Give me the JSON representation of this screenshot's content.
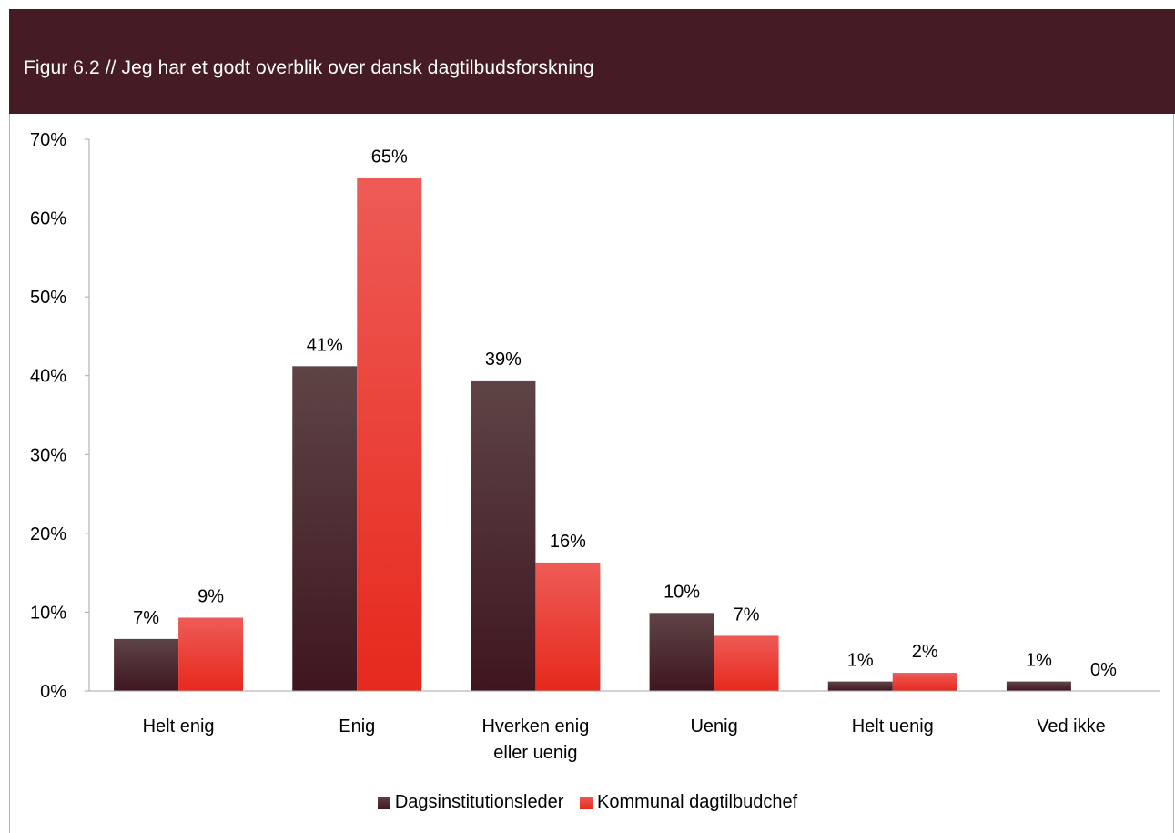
{
  "header": {
    "title": "Figur 6.2 // Jeg har et godt overblik over dansk dagtilbudsforskning"
  },
  "chart_data": {
    "type": "bar",
    "title": "Figur 6.2 // Jeg har et godt overblik over dansk dagtilbudsforskning",
    "categories": [
      [
        "Helt enig"
      ],
      [
        "Enig"
      ],
      [
        "Hverken enig",
        "eller uenig"
      ],
      [
        "Uenig"
      ],
      [
        "Helt uenig"
      ],
      [
        "Ved ikke"
      ]
    ],
    "series": [
      {
        "name": "Dagsinstitutionsleder",
        "values": [
          6.6,
          41.2,
          39.4,
          9.9,
          1.2,
          1.2
        ],
        "labels": [
          "7%",
          "41%",
          "39%",
          "10%",
          "1%",
          "1%"
        ],
        "color_top": "#5e4446",
        "color_bottom": "#3f1620"
      },
      {
        "name": "Kommunal dagtilbudchef",
        "values": [
          9.3,
          65.1,
          16.3,
          7.0,
          2.3,
          0
        ],
        "labels": [
          "9%",
          "65%",
          "16%",
          "7%",
          "2%",
          "0%"
        ],
        "color_top": "#ee5b56",
        "color_bottom": "#e6291d"
      }
    ],
    "y_ticks": [
      "0%",
      "10%",
      "20%",
      "30%",
      "40%",
      "50%",
      "60%",
      "70%"
    ],
    "ylim": [
      0,
      70
    ],
    "legend_position": "bottom",
    "grid": false
  }
}
